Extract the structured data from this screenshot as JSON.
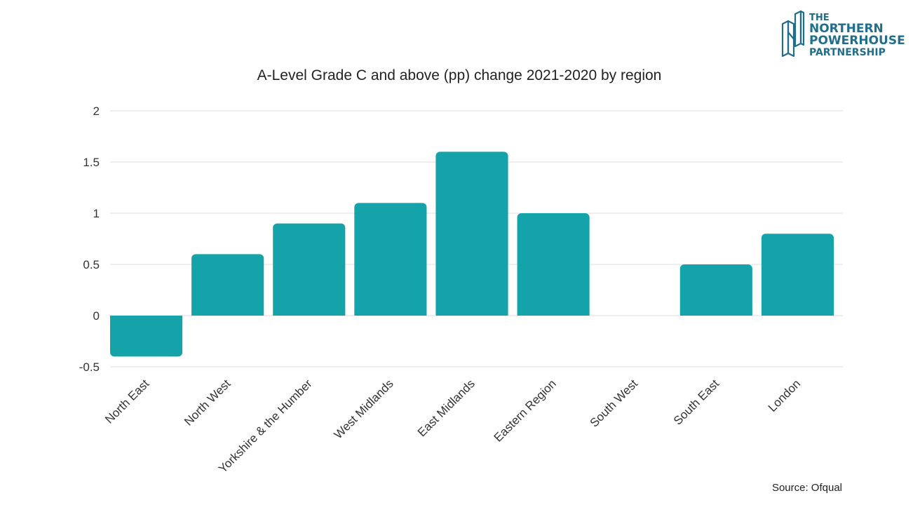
{
  "logo": {
    "line1": "THE",
    "line2": "NORTHERN",
    "line3": "POWERHOUSE",
    "line4": "PARTNERSHIP",
    "color": "#1f6e8c"
  },
  "source": "Source: Ofqual",
  "chart_data": {
    "type": "bar",
    "title": "A-Level Grade C and above (pp) change 2021-2020 by region",
    "xlabel": "",
    "ylabel": "",
    "categories": [
      "North East",
      "North West",
      "Yorkshire & the Humber",
      "West Midlands",
      "East Midlands",
      "Eastern Region",
      "South West",
      "South East",
      "London"
    ],
    "values": [
      -0.4,
      0.6,
      0.9,
      1.1,
      1.6,
      1.0,
      0.0,
      0.5,
      0.8
    ],
    "ylim": [
      -0.5,
      2
    ],
    "yticks": [
      "-0.5",
      "0",
      "0.5",
      "1",
      "1.5",
      "2"
    ],
    "bar_color": "#14a3a8",
    "grid": true,
    "legend": "none"
  }
}
